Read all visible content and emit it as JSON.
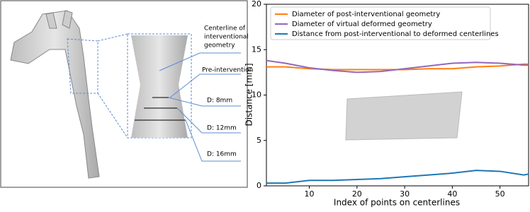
{
  "illustration": {
    "centerline_label": [
      "Centerline of",
      "interventional",
      "geometry"
    ],
    "pre_label": "Pre-intervention",
    "d_labels": [
      "D: 8mm",
      "D: 12mm",
      "D: 16mm"
    ]
  },
  "chart_data": {
    "type": "line",
    "x_label": "Index of points on centerlines",
    "y_label": "Distance [mm]",
    "x": [
      1,
      5,
      10,
      15,
      20,
      25,
      30,
      35,
      40,
      45,
      50,
      55,
      56
    ],
    "series": [
      {
        "name": "Diameter of post-interventional geometry",
        "color": "#ff7f0e",
        "values": [
          13.1,
          13.1,
          12.9,
          12.8,
          12.8,
          12.8,
          12.8,
          12.9,
          12.9,
          13.1,
          13.2,
          13.4,
          13.4
        ]
      },
      {
        "name": "Diameter of virtual deformed geometry",
        "color": "#9467bd",
        "values": [
          13.8,
          13.5,
          13.0,
          12.7,
          12.5,
          12.6,
          12.9,
          13.2,
          13.5,
          13.6,
          13.5,
          13.3,
          13.3
        ]
      },
      {
        "name": "Distance from post-interventional to deformed centerlines",
        "color": "#1f77b4",
        "values": [
          0.3,
          0.3,
          0.6,
          0.6,
          0.7,
          0.8,
          1.0,
          1.2,
          1.4,
          1.7,
          1.6,
          1.2,
          1.3
        ]
      }
    ],
    "xlim": [
      1,
      56
    ],
    "xticks": [
      10,
      20,
      30,
      40,
      50
    ],
    "ylim": [
      0,
      20
    ],
    "yticks": [
      0,
      5,
      10,
      15,
      20
    ],
    "legend": "upper left"
  }
}
